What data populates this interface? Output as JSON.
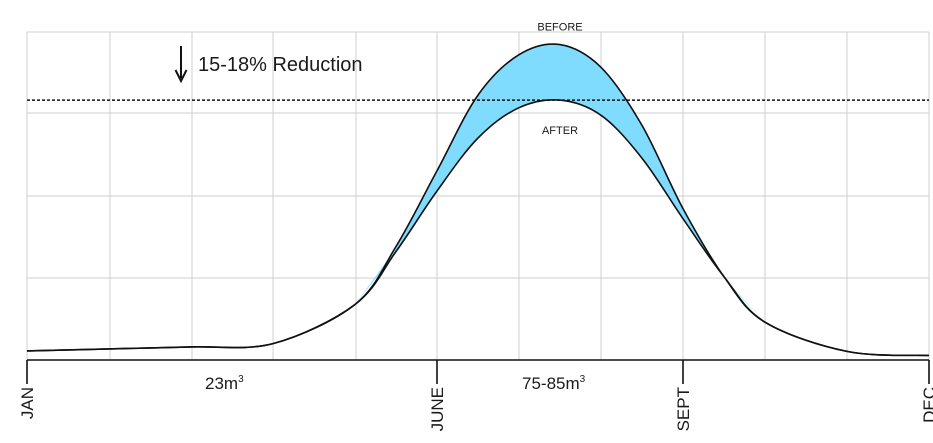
{
  "chart_data": {
    "type": "area",
    "colors": {
      "fill_between": "#7fdcff",
      "curve": "#111111",
      "grid": "#cfcfcf",
      "reference_line": "#111111"
    },
    "grid": true,
    "x_ticks": [
      {
        "label": "JAN",
        "value": 0
      },
      {
        "label": "JUNE",
        "value": 5
      },
      {
        "label": "SEPT",
        "value": 8
      },
      {
        "label": "DEC",
        "value": 11
      }
    ],
    "series": [
      {
        "name": "BEFORE",
        "points": [
          [
            0,
            0.36
          ],
          [
            1,
            0.44
          ],
          [
            2,
            0.52
          ],
          [
            3,
            0.65
          ],
          [
            4,
            2.2
          ],
          [
            4.5,
            4.5
          ],
          [
            5,
            7.5
          ],
          [
            5.5,
            10.5
          ],
          [
            6,
            12.1
          ],
          [
            6.5,
            12.5
          ],
          [
            7,
            11.6
          ],
          [
            7.5,
            9.3
          ],
          [
            8,
            6.0
          ],
          [
            8.5,
            3.3
          ],
          [
            9,
            1.5
          ],
          [
            10,
            0.34
          ],
          [
            11,
            0.18
          ]
        ]
      },
      {
        "name": "AFTER",
        "points": [
          [
            0,
            0.36
          ],
          [
            1,
            0.44
          ],
          [
            2,
            0.52
          ],
          [
            3,
            0.65
          ],
          [
            4,
            2.2
          ],
          [
            4.5,
            4.3
          ],
          [
            5,
            6.7
          ],
          [
            5.5,
            8.8
          ],
          [
            6,
            10.0
          ],
          [
            6.5,
            10.3
          ],
          [
            7,
            9.7
          ],
          [
            7.5,
            8.0
          ],
          [
            8,
            5.6
          ],
          [
            8.5,
            3.3
          ],
          [
            9,
            1.5
          ],
          [
            10,
            0.34
          ],
          [
            11,
            0.18
          ]
        ]
      }
    ],
    "reference_line_y": 10.3,
    "ylim": [
      0,
      13
    ],
    "xlim": [
      0,
      11
    ]
  },
  "annotations": {
    "reduction_arrow": "↓",
    "reduction_text": "15-18% Reduction",
    "low_volume": "23m",
    "low_volume_sup": "3",
    "high_volume": "75-85m",
    "high_volume_sup": "3"
  }
}
